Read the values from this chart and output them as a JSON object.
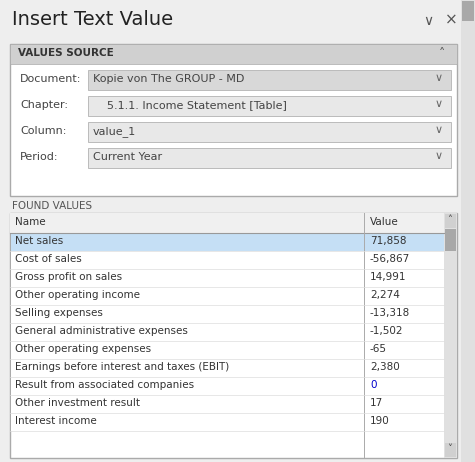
{
  "title": "Insert Text Value",
  "bg_color": "#eeeeee",
  "section_header_bg": "#d0d0d0",
  "section_header_text": "VALUES SOURCE",
  "section2_header_text": "FOUND VALUES",
  "fields": [
    {
      "label": "Document:",
      "value": "Kopie von The GROUP - MD",
      "bg": "#d8d8d8",
      "disabled": true
    },
    {
      "label": "Chapter:",
      "value": "    5.1.1. Income Statement [Table]",
      "bg": "#e8e8e8",
      "disabled": false
    },
    {
      "label": "Column:",
      "value": "value_1",
      "bg": "#e8e8e8",
      "disabled": false
    },
    {
      "label": "Period:",
      "value": "Current Year",
      "bg": "#e8e8e8",
      "disabled": false
    }
  ],
  "table_header": [
    "Name",
    "Value"
  ],
  "table_header_bg": "#f0f0f0",
  "table_rows": [
    {
      "name": "Net sales",
      "value": "71,858",
      "highlight": true
    },
    {
      "name": "Cost of sales",
      "value": "-56,867",
      "highlight": false
    },
    {
      "name": "Gross profit on sales",
      "value": "14,991",
      "highlight": false
    },
    {
      "name": "Other operating income",
      "value": "2,274",
      "highlight": false
    },
    {
      "name": "Selling expenses",
      "value": "-13,318",
      "highlight": false
    },
    {
      "name": "General administrative expenses",
      "value": "-1,502",
      "highlight": false
    },
    {
      "name": "Other operating expenses",
      "value": "-65",
      "highlight": false
    },
    {
      "name": "Earnings before interest and taxes (EBIT)",
      "value": "2,380",
      "highlight": false
    },
    {
      "name": "Result from associated companies",
      "value": "0",
      "highlight": false
    },
    {
      "name": "Other investment result",
      "value": "17",
      "highlight": false
    },
    {
      "name": "Interest income",
      "value": "190",
      "highlight": false
    }
  ],
  "row_highlight_bg": "#c5dff5",
  "row_normal_bg": "#ffffff",
  "text_color": "#333333",
  "border_color": "#aaaaaa",
  "scrollbar_bg": "#d8d8d8",
  "scrollbar_thumb": "#a8a8a8",
  "value_zero_color": "#0000cc",
  "title_fontsize": 14,
  "field_label_fontsize": 8,
  "field_value_fontsize": 8,
  "table_fontsize": 7.5,
  "section_label_fontsize": 7.5
}
